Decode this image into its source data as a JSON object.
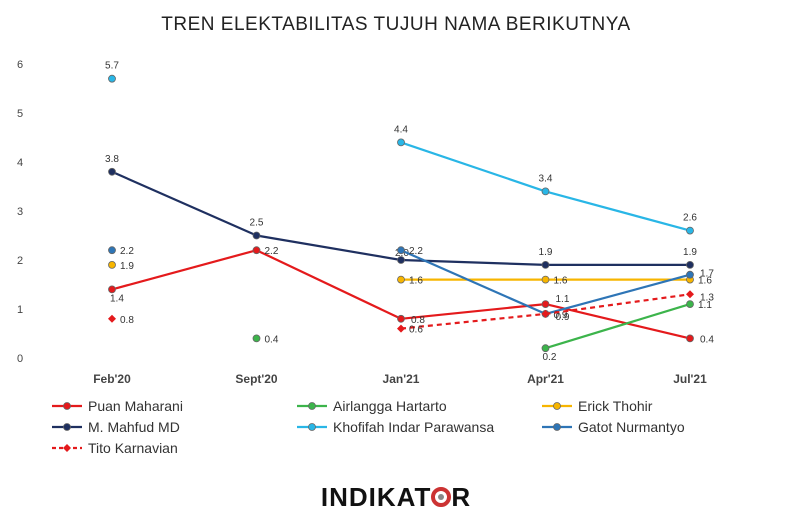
{
  "chart_data": {
    "type": "line",
    "title": "TREN ELEKTABILITAS TUJUH NAMA BERIKUTNYA",
    "categories": [
      "Feb'20",
      "Sept'20",
      "Jan'21",
      "Apr'21",
      "Jul'21"
    ],
    "ylim": [
      0,
      6
    ],
    "yticks": [
      "0",
      "1",
      "2",
      "3",
      "4",
      "5",
      "6"
    ],
    "grid": false,
    "legend_position": "bottom",
    "series": [
      {
        "name": "Puan Maharani",
        "color": "#e41a1c",
        "dash": false,
        "marker": "circle",
        "values": [
          1.4,
          2.2,
          0.8,
          1.1,
          0.4
        ],
        "labels": [
          "1.4",
          "2.2",
          "0.8",
          "1.1",
          "0.4"
        ]
      },
      {
        "name": "Airlangga Hartarto",
        "color": "#3cb44b",
        "dash": false,
        "marker": "circle",
        "values": [
          null,
          0.4,
          null,
          0.2,
          1.1
        ],
        "labels": [
          null,
          "0.4",
          null,
          "0.2",
          "1.1"
        ]
      },
      {
        "name": "Erick Thohir",
        "color": "#f7b500",
        "dash": false,
        "marker": "circle",
        "values": [
          1.9,
          null,
          1.6,
          1.6,
          1.6
        ],
        "labels": [
          "1.9",
          null,
          "1.6",
          "1.6",
          "1.6"
        ]
      },
      {
        "name": "M. Mahfud MD",
        "color": "#1f3060",
        "dash": false,
        "marker": "circle",
        "values": [
          3.8,
          2.5,
          2.0,
          1.9,
          1.9
        ],
        "labels": [
          "3.8",
          "2.5",
          "2.0",
          "1.9",
          "1.9"
        ]
      },
      {
        "name": "Khofifah Indar Parawansa",
        "color": "#29b6e6",
        "dash": false,
        "marker": "circle",
        "values": [
          5.7,
          null,
          4.4,
          3.4,
          2.6
        ],
        "labels": [
          "5.7",
          null,
          "4.4",
          "3.4",
          "2.6"
        ]
      },
      {
        "name": "Gatot Nurmantyo",
        "color": "#2e75b6",
        "dash": false,
        "marker": "circle",
        "values": [
          2.2,
          null,
          2.2,
          0.9,
          1.7
        ],
        "labels": [
          "2.2",
          null,
          "2.2",
          "0.9",
          "1.7"
        ]
      },
      {
        "name": "Tito Karnavian",
        "color": "#e41a1c",
        "dash": true,
        "marker": "diamond",
        "values": [
          0.8,
          null,
          0.6,
          0.9,
          1.3
        ],
        "labels": [
          "0.8",
          null,
          "0.6",
          "0.9",
          "1.3"
        ]
      }
    ]
  },
  "logo": {
    "text_a": "INDIKAT",
    "text_b": "R"
  }
}
